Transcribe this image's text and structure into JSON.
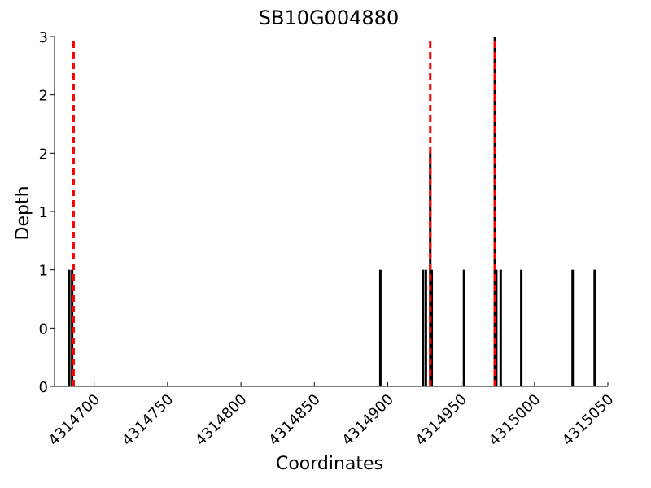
{
  "chart_data": {
    "type": "bar",
    "title": "SB10G004880",
    "x_label": "Coordinates",
    "y_label": "Depth",
    "x": [
      4314683,
      4314685,
      4314895,
      4314924,
      4314926,
      4314929,
      4314930,
      4314952,
      4314973,
      4314974,
      4314977,
      4314991,
      4315026,
      4315041
    ],
    "values": [
      1,
      1,
      1,
      1,
      1,
      2,
      1,
      1,
      3,
      1,
      1,
      1,
      1,
      1
    ],
    "color": "#000000",
    "markers": {
      "x": [
        4314686,
        4314929,
        4314973
      ],
      "color": "#ff0000"
    },
    "xlim": [
      4314673,
      4315050
    ],
    "ylim": [
      0,
      3
    ],
    "xticks": [
      4314700,
      4314750,
      4314800,
      4314850,
      4314900,
      4314950,
      4315000,
      4315050
    ],
    "yticks": [
      0,
      {
        "value": 0.5,
        "label": "0"
      },
      1,
      {
        "value": 1.5,
        "label": "1"
      },
      2,
      {
        "value": 2.5,
        "label": "2"
      },
      3
    ],
    "grid": false
  }
}
